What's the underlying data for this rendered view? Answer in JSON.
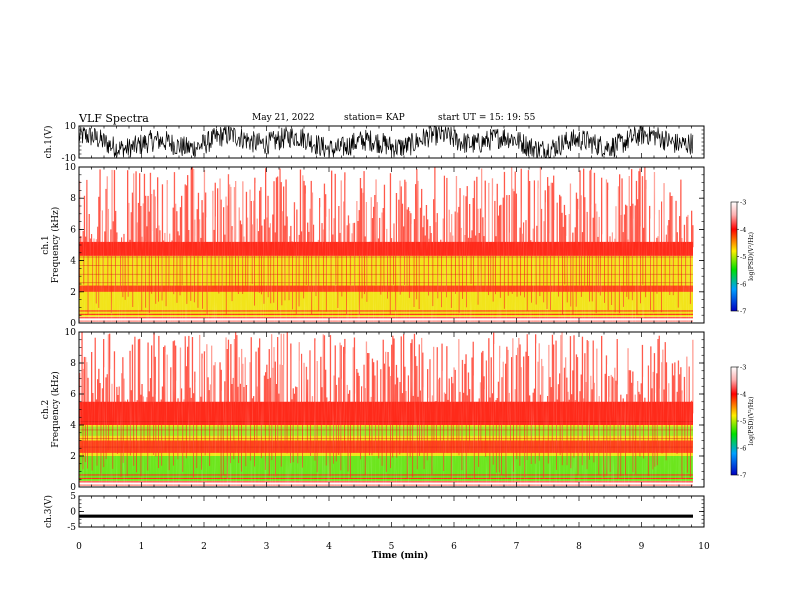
{
  "header": {
    "title": "VLF Spectra",
    "date": "May 21, 2022",
    "station": "station= KAP",
    "start": "start  UT =   15: 19: 55"
  },
  "chart_data": [
    {
      "type": "line",
      "panel": "ch1-waveform",
      "ylabel": "ch.1(V)",
      "ylim": [
        -10,
        10
      ],
      "yticks": [
        "10",
        "-10"
      ],
      "xlim": [
        0,
        10
      ],
      "description_of_values": "dense noisy waveform, roughly between -8 and 8 V"
    },
    {
      "type": "heatmap",
      "panel": "ch1-spectrogram",
      "ylabel": "ch.1\nFrequency (kHz)",
      "ylabel_lines": [
        "ch.1",
        "Frequency  (kHz)"
      ],
      "ylim": [
        0,
        10
      ],
      "yticks": [
        "0",
        "2",
        "4",
        "6",
        "8",
        "10"
      ],
      "xlim": [
        0,
        9.85
      ],
      "bands_khz": {
        "high_energy_top": 5.2,
        "yellow_top": 4.3,
        "red_band": [
          2.0,
          2.4
        ],
        "yellow_low": [
          1.2,
          2.0
        ],
        "bottom_lines": [
          0.2,
          0.6
        ]
      },
      "colorbar": {
        "label": "log(PSD)(V²/Hz)",
        "ticks": [
          "-3",
          "-4",
          "-5",
          "-6",
          "-7"
        ],
        "range": [
          -7,
          -3
        ]
      }
    },
    {
      "type": "heatmap",
      "panel": "ch2-spectrogram",
      "ylabel_lines": [
        "ch.2",
        "Frequency  (kHz)"
      ],
      "ylim": [
        0,
        10
      ],
      "yticks": [
        "0",
        "2",
        "4",
        "6",
        "8",
        "10"
      ],
      "xlim": [
        0,
        9.85
      ],
      "bands_khz": {
        "high_energy_top": 5.5,
        "yellow_top": 4.0,
        "red_band": [
          2.2,
          3.0
        ],
        "green_low": [
          0.4,
          2.0
        ]
      },
      "colorbar": {
        "label": "log(PSD)(V²/Hz)",
        "ticks": [
          "-3",
          "-4",
          "-5",
          "-6",
          "-7"
        ],
        "range": [
          -7,
          -3
        ]
      }
    },
    {
      "type": "line",
      "panel": "ch3-waveform",
      "ylabel": "ch.3(V)",
      "ylim": [
        -5,
        5
      ],
      "yticks": [
        "5",
        "0",
        "-5"
      ],
      "xlim": [
        0,
        10
      ],
      "xlabel": "Time  (min)",
      "xticks": [
        "0",
        "1",
        "2",
        "3",
        "4",
        "5",
        "6",
        "7",
        "8",
        "9",
        "10"
      ],
      "description_of_values": "thin constant band around -1.5 V"
    }
  ],
  "colors": {
    "red": "#ff2a1a",
    "yellow": "#f2e41a",
    "green": "#33e01a",
    "white": "#ffffff",
    "black": "#000000"
  }
}
